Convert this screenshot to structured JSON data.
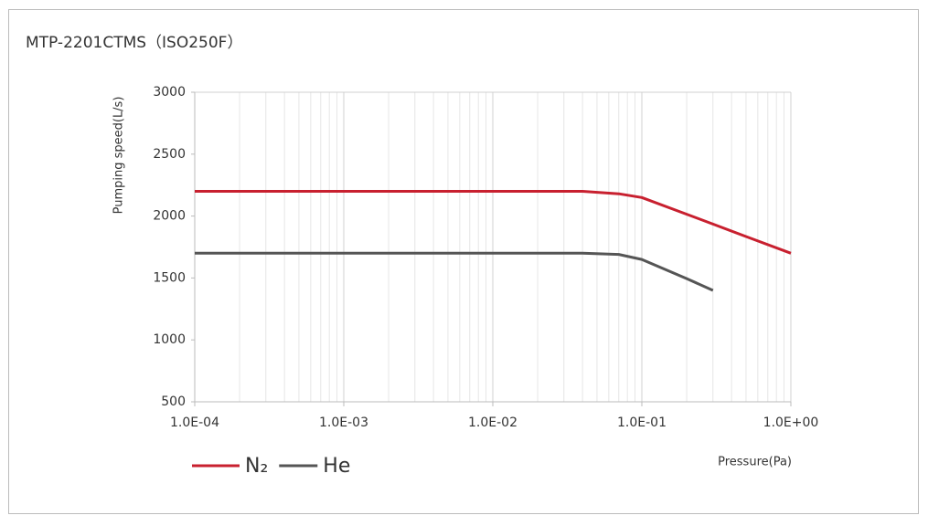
{
  "chart_data": {
    "type": "line",
    "title": "MTP-2201CTMS（ISO250F）",
    "x_label": "Pressure(Pa)",
    "y_label": "Pumping speed(L/s)",
    "x": [
      0.0001,
      0.001,
      0.01,
      0.04,
      0.07,
      0.1,
      0.2,
      0.3,
      0.5,
      1
    ],
    "series": [
      {
        "name": "N₂",
        "color": "#c8202f",
        "values": [
          2200,
          2200,
          2200,
          2200,
          2180,
          2150,
          2015,
          1935,
          1835,
          1700
        ]
      },
      {
        "name": "He",
        "color": "#555555",
        "values": [
          1700,
          1700,
          1700,
          1700,
          1690,
          1650,
          1495,
          1400,
          null,
          null
        ]
      }
    ],
    "x_log": true,
    "xlim": [
      0.0001,
      1
    ],
    "xticks": [
      {
        "value": 0.0001,
        "label": "1.0E-04"
      },
      {
        "value": 0.001,
        "label": "1.0E-03"
      },
      {
        "value": 0.01,
        "label": "1.0E-02"
      },
      {
        "value": 0.1,
        "label": "1.0E-01"
      },
      {
        "value": 1,
        "label": "1.0E+00"
      }
    ],
    "ylim": [
      500,
      3000
    ],
    "yticks": [
      500,
      1000,
      1500,
      2000,
      2500,
      3000
    ],
    "grid": true,
    "legend": "bottom-left"
  }
}
